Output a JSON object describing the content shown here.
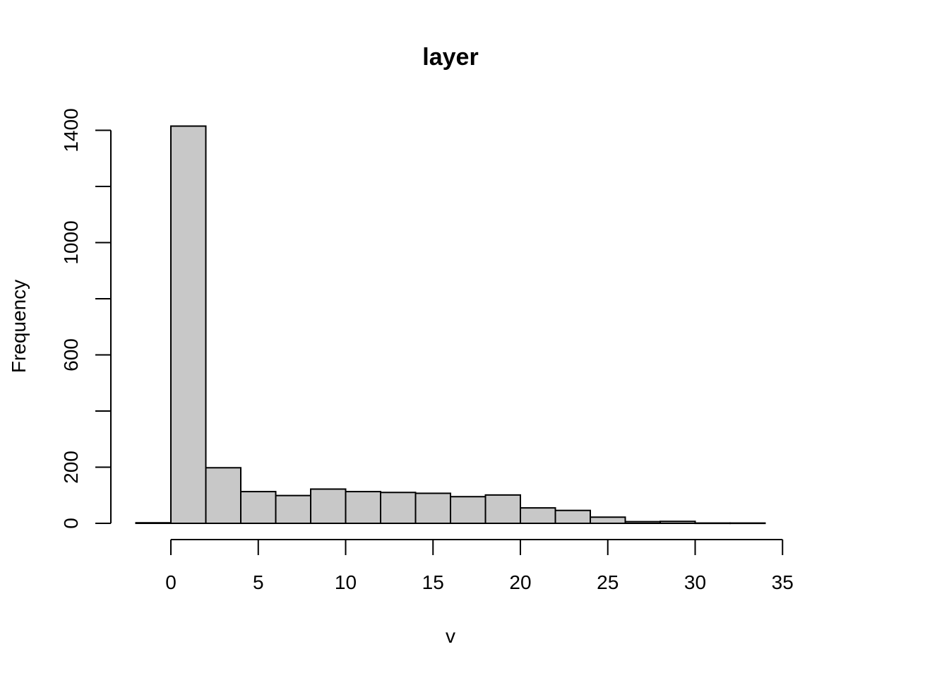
{
  "chart_data": {
    "type": "bar",
    "title": "layer",
    "xlabel": "v",
    "ylabel": "Frequency",
    "bar_color": "#c8c8c8",
    "edge_color": "#000000",
    "xlim": [
      -2,
      35
    ],
    "ylim": [
      0,
      1420
    ],
    "x_ticks": [
      0,
      5,
      10,
      15,
      20,
      25,
      30,
      35
    ],
    "y_ticks": [
      0,
      200,
      400,
      600,
      800,
      1000,
      1200,
      1400
    ],
    "y_tick_labels": [
      "0",
      "200",
      "",
      "600",
      "",
      "1000",
      "",
      "1400"
    ],
    "bins": [
      {
        "x0": -2,
        "x1": 0,
        "count": 2
      },
      {
        "x0": 0,
        "x1": 2,
        "count": 1415
      },
      {
        "x0": 2,
        "x1": 4,
        "count": 198
      },
      {
        "x0": 4,
        "x1": 6,
        "count": 113
      },
      {
        "x0": 6,
        "x1": 8,
        "count": 99
      },
      {
        "x0": 8,
        "x1": 10,
        "count": 122
      },
      {
        "x0": 10,
        "x1": 12,
        "count": 113
      },
      {
        "x0": 12,
        "x1": 14,
        "count": 110
      },
      {
        "x0": 14,
        "x1": 16,
        "count": 107
      },
      {
        "x0": 16,
        "x1": 18,
        "count": 95
      },
      {
        "x0": 18,
        "x1": 20,
        "count": 101
      },
      {
        "x0": 20,
        "x1": 22,
        "count": 55
      },
      {
        "x0": 22,
        "x1": 24,
        "count": 46
      },
      {
        "x0": 24,
        "x1": 26,
        "count": 22
      },
      {
        "x0": 26,
        "x1": 28,
        "count": 6
      },
      {
        "x0": 28,
        "x1": 30,
        "count": 7
      },
      {
        "x0": 30,
        "x1": 32,
        "count": 1
      },
      {
        "x0": 32,
        "x1": 34,
        "count": 1
      }
    ]
  }
}
